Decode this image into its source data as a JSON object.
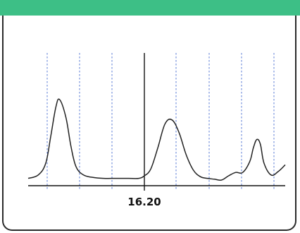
{
  "header": {
    "title": ""
  },
  "colors": {
    "header_bg": "#3dbf86",
    "curve": "#222222",
    "grid": "#5a7bd6",
    "axis": "#111111"
  },
  "chart_data": {
    "type": "line",
    "title": "",
    "xlabel": "",
    "ylabel": "",
    "x_tick_labels": [
      {
        "x": 16.2,
        "label": "16.20"
      }
    ],
    "grid": true,
    "xlim": [
      -30,
      56
    ],
    "ylim": [
      0,
      100
    ],
    "cursor": {
      "x": 16.2
    },
    "series": [
      {
        "x": [
          -30,
          -26,
          -23,
          -21,
          -19,
          -17.5,
          -15,
          -13,
          -11,
          -8,
          -4,
          0,
          5,
          10,
          14,
          16.2,
          18,
          20,
          22,
          24,
          26,
          28,
          30,
          32,
          34,
          36,
          38,
          40,
          42,
          44,
          46,
          47,
          48,
          49,
          50,
          52,
          54,
          56
        ],
        "y": [
          2,
          6,
          20,
          52,
          86,
          95,
          74,
          40,
          16,
          6,
          3,
          2,
          2,
          2,
          2,
          5,
          13,
          38,
          66,
          71,
          56,
          30,
          12,
          4,
          2,
          1,
          0,
          5,
          9,
          9,
          22,
          38,
          48,
          42,
          20,
          6,
          10,
          18
        ]
      }
    ]
  }
}
